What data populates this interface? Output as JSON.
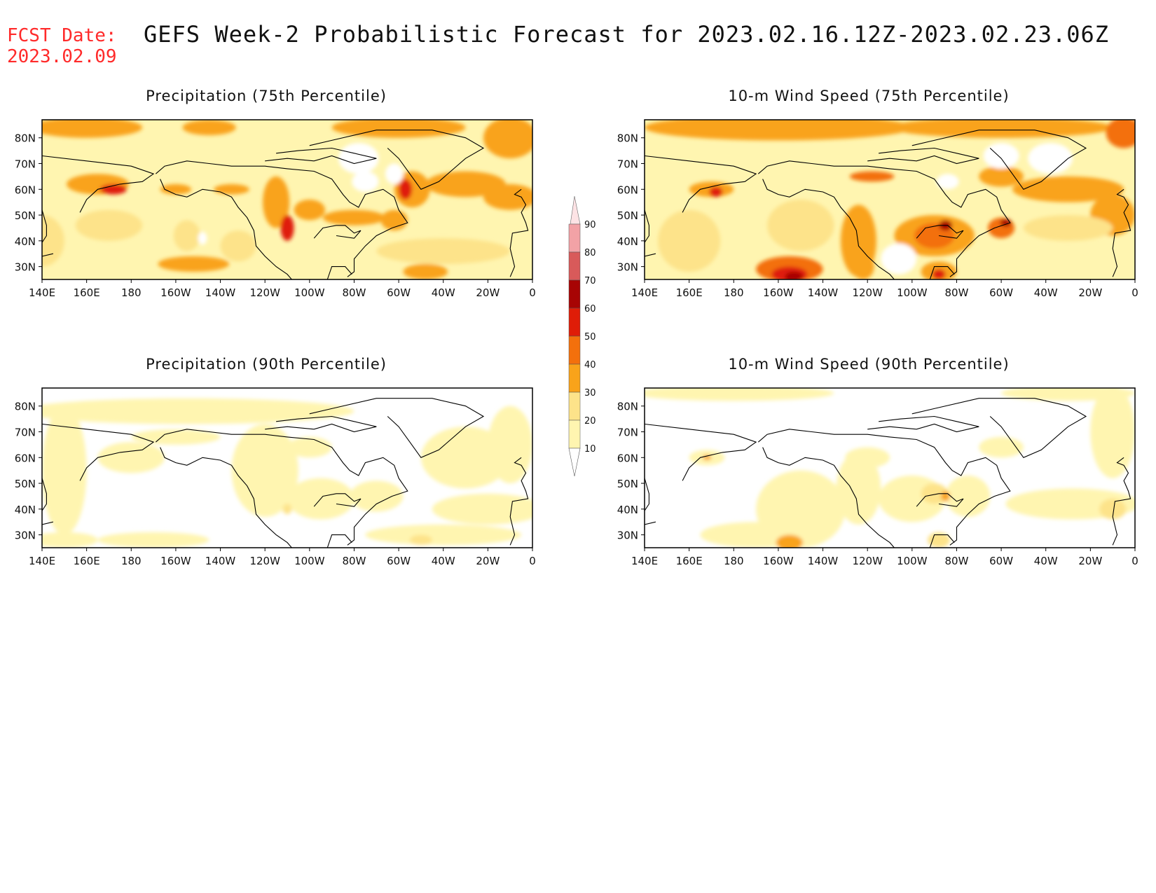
{
  "header": {
    "fcst_label": "FCST Date:",
    "fcst_date": "2023.02.09",
    "title": "GEFS Week-2 Probabilistic Forecast for 2023.02.16.12Z-2023.02.23.06Z"
  },
  "panels": [
    {
      "id": "precip75",
      "title": "Precipitation (75th Percentile)"
    },
    {
      "id": "wind75",
      "title": "10-m Wind Speed (75th Percentile)"
    },
    {
      "id": "precip90",
      "title": "Precipitation (90th Percentile)"
    },
    {
      "id": "wind90",
      "title": "10-m Wind Speed (90th Percentile)"
    }
  ],
  "axes": {
    "lon_labels": [
      "140E",
      "160E",
      "180",
      "160W",
      "140W",
      "120W",
      "100W",
      "80W",
      "60W",
      "40W",
      "20W",
      "0"
    ],
    "lat_labels": [
      "80N",
      "70N",
      "60N",
      "50N",
      "40N",
      "30N"
    ]
  },
  "colorbar": {
    "labels": [
      "10",
      "20",
      "30",
      "40",
      "50",
      "60",
      "70",
      "80",
      "90"
    ],
    "colors": [
      "#fff5b0",
      "#fde38a",
      "#f9a31a",
      "#f3700c",
      "#df1d08",
      "#a70404",
      "#d85a5a",
      "#f2a2a6",
      "#fde3e5"
    ]
  }
}
